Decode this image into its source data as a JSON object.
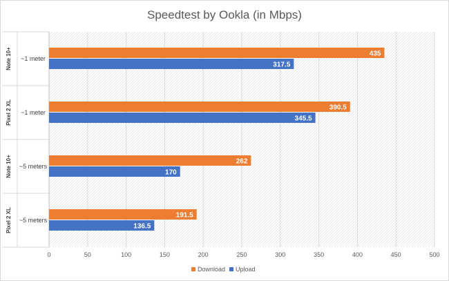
{
  "chart_data": {
    "type": "bar",
    "orientation": "horizontal",
    "title": "Speedtest by Ookla (in Mbps)",
    "xlabel": "",
    "ylabel": "",
    "xlim": [
      0,
      500
    ],
    "xticks": [
      0,
      50,
      100,
      150,
      200,
      250,
      300,
      350,
      400,
      450,
      500
    ],
    "grid": true,
    "legend_position": "bottom",
    "groups": [
      {
        "device": "Note 10+",
        "distance": "~1 meter"
      },
      {
        "device": "Pixel 2 XL",
        "distance": "~1 meter"
      },
      {
        "device": "Note 10+",
        "distance": "~5 meters"
      },
      {
        "device": "Pixel 2 XL",
        "distance": "~5 meters"
      }
    ],
    "series": [
      {
        "name": "Download",
        "color": "#ed7d31",
        "values": [
          435,
          390.5,
          262,
          191.5
        ]
      },
      {
        "name": "Upload",
        "color": "#4472c4",
        "values": [
          317.5,
          345.5,
          170,
          136.5
        ]
      }
    ]
  }
}
